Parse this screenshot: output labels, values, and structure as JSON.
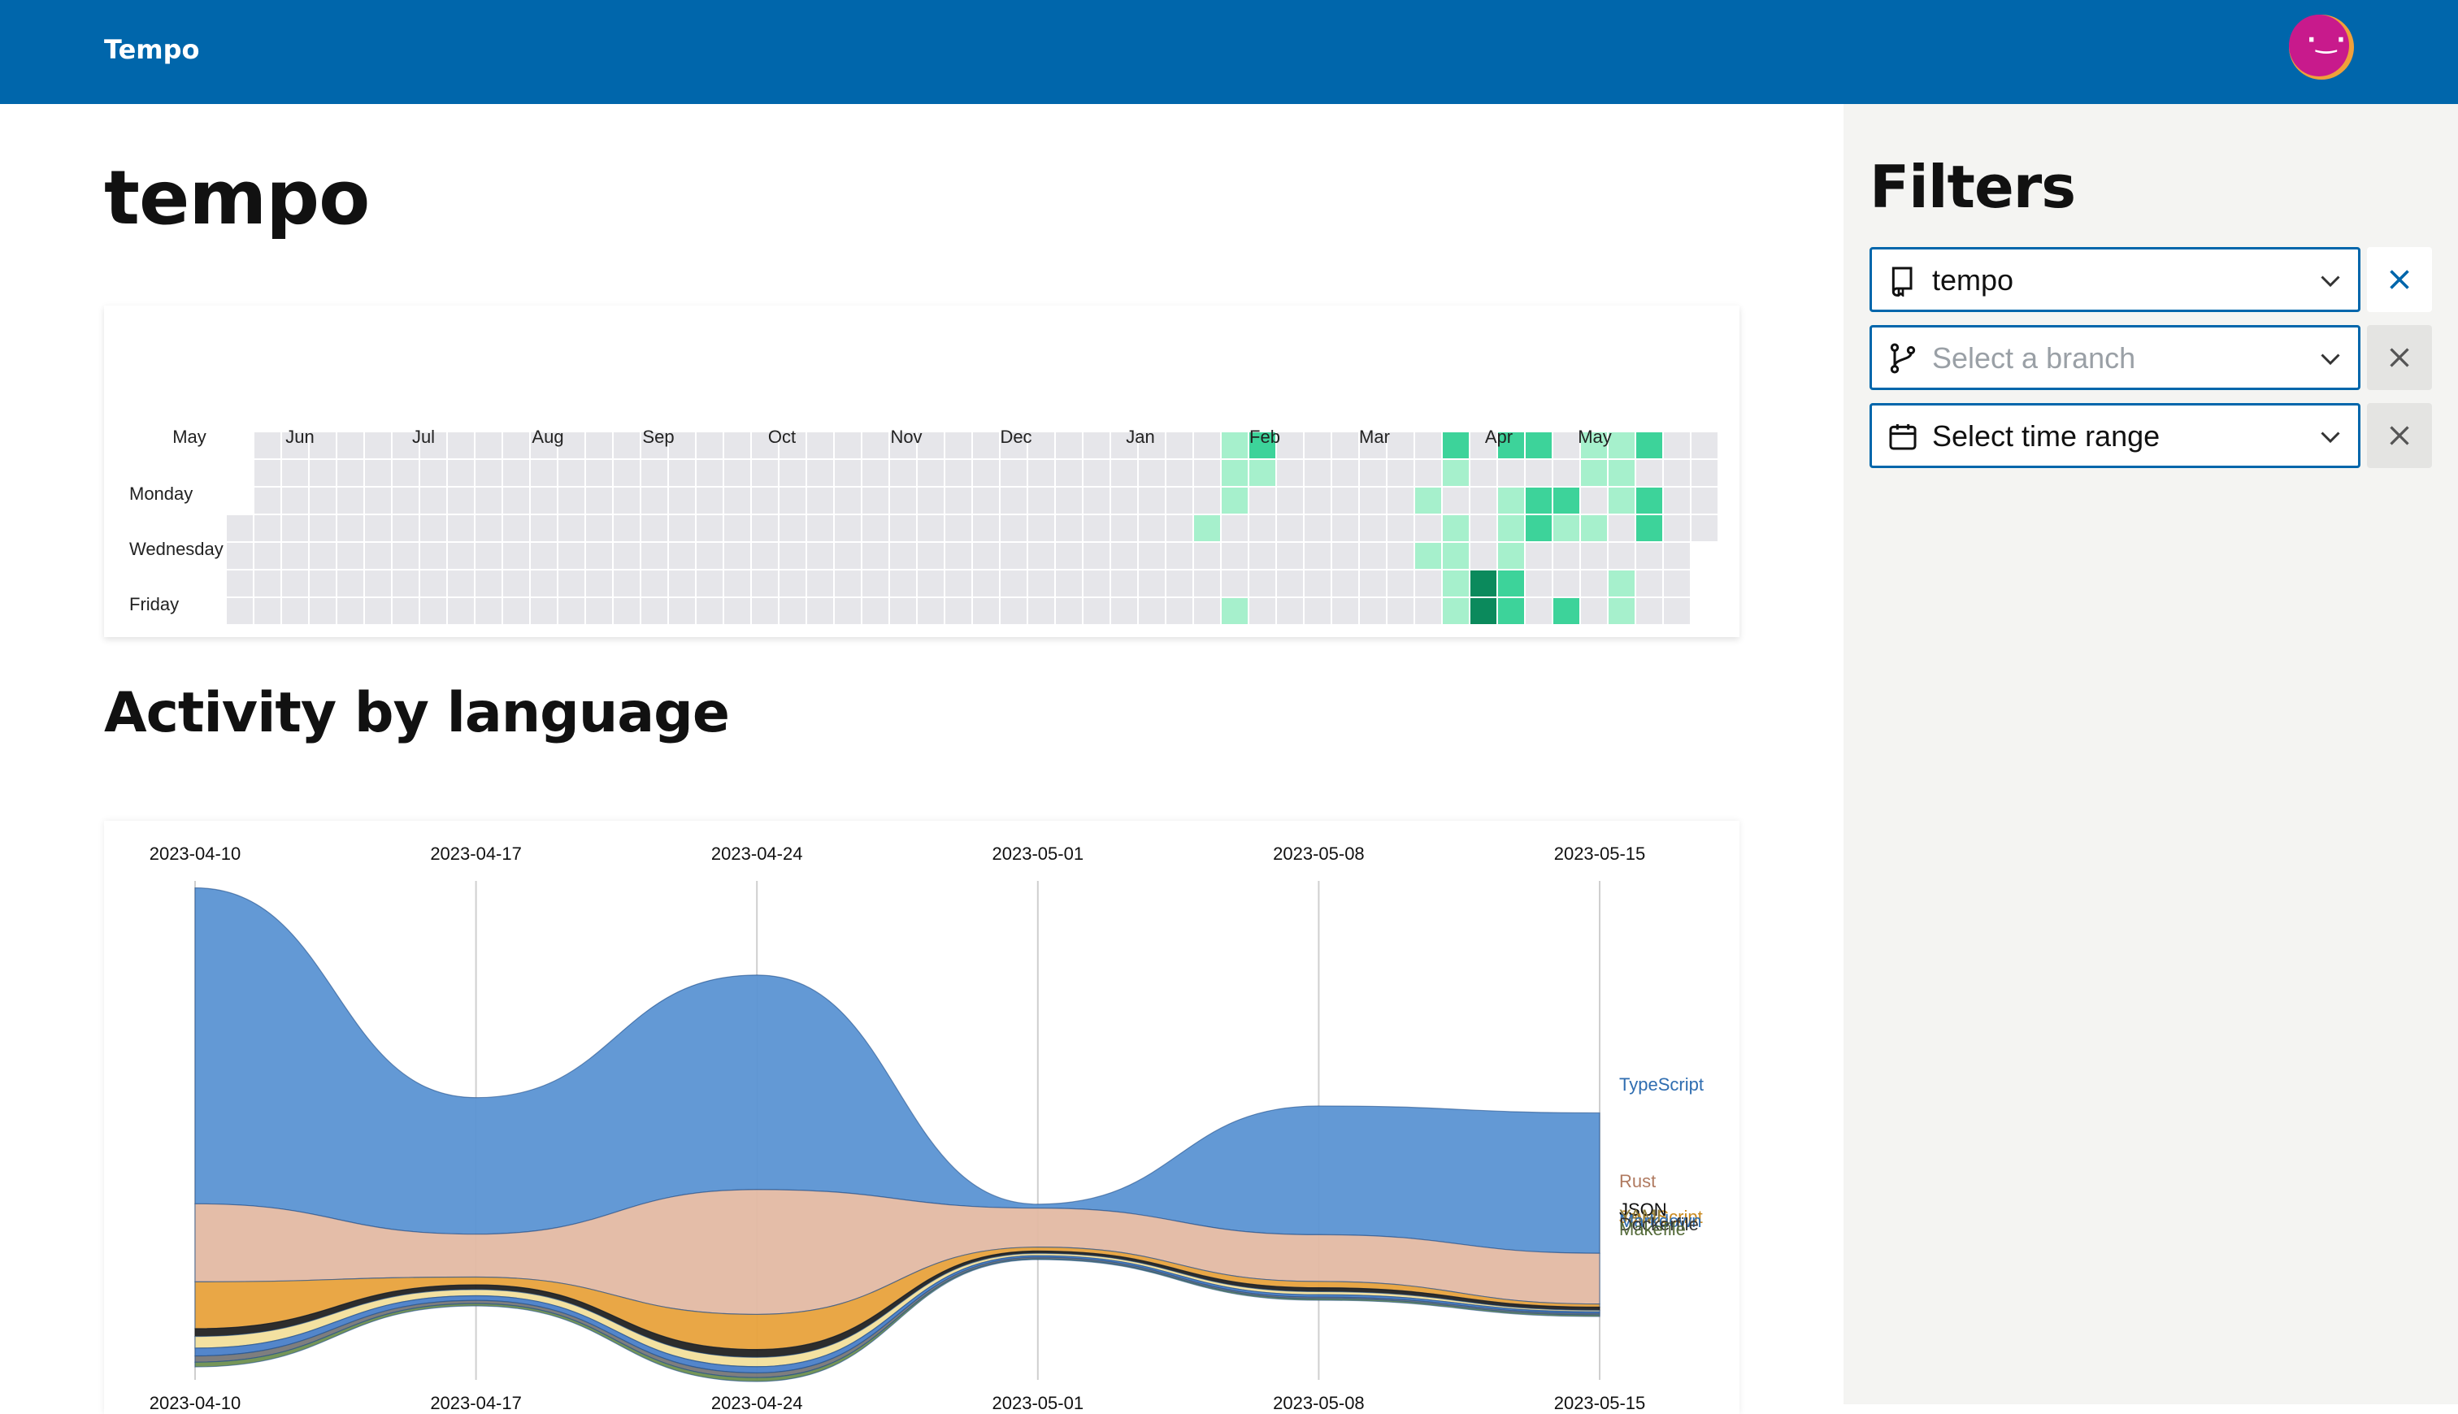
{
  "app": {
    "brand": "Tempo"
  },
  "page": {
    "title": "tempo"
  },
  "heatmap": {
    "months": [
      "May",
      "Jun",
      "Jul",
      "Aug",
      "Sep",
      "Oct",
      "Nov",
      "Dec",
      "Jan",
      "Feb",
      "Mar",
      "Apr",
      "May"
    ],
    "weekdays": [
      "Monday",
      "Wednesday",
      "Friday"
    ],
    "colors": {
      "empty": "#e6e6ea",
      "l1": "#a6f0cc",
      "l2": "#3dd39a",
      "l3": "#0b8a5c"
    }
  },
  "activity": {
    "title": "Activity by language",
    "chart_data": {
      "type": "area",
      "x": [
        "2023-04-10",
        "2023-04-17",
        "2023-04-24",
        "2023-05-01",
        "2023-05-08",
        "2023-05-15"
      ],
      "series": [
        {
          "name": "TypeScript",
          "color": "#5b93d3",
          "values": [
            405,
            175,
            275,
            5,
            165,
            180
          ]
        },
        {
          "name": "Rust",
          "color": "#e3b9a3",
          "values": [
            100,
            55,
            160,
            50,
            60,
            65
          ]
        },
        {
          "name": "JavaScript",
          "color": "#e8a23c",
          "values": [
            60,
            10,
            45,
            5,
            8,
            4
          ]
        },
        {
          "name": "JSON",
          "color": "#222222",
          "values": [
            10,
            6,
            10,
            3,
            5,
            4
          ]
        },
        {
          "name": "YAML",
          "color": "#f2df9c",
          "values": [
            15,
            8,
            12,
            3,
            4,
            2
          ]
        },
        {
          "name": "Markdown",
          "color": "#4a7fc8",
          "values": [
            10,
            6,
            8,
            2,
            3,
            2
          ]
        },
        {
          "name": "Dockerfile",
          "color": "#777777",
          "values": [
            8,
            4,
            6,
            2,
            2,
            2
          ]
        },
        {
          "name": "Makefile",
          "color": "#6e8f4f",
          "values": [
            6,
            3,
            5,
            1,
            2,
            2
          ]
        }
      ],
      "label_placement": "right-end"
    }
  },
  "filters": {
    "title": "Filters",
    "repo": {
      "value": "tempo"
    },
    "branch": {
      "placeholder": "Select a branch"
    },
    "time": {
      "placeholder": "Select time range"
    }
  }
}
